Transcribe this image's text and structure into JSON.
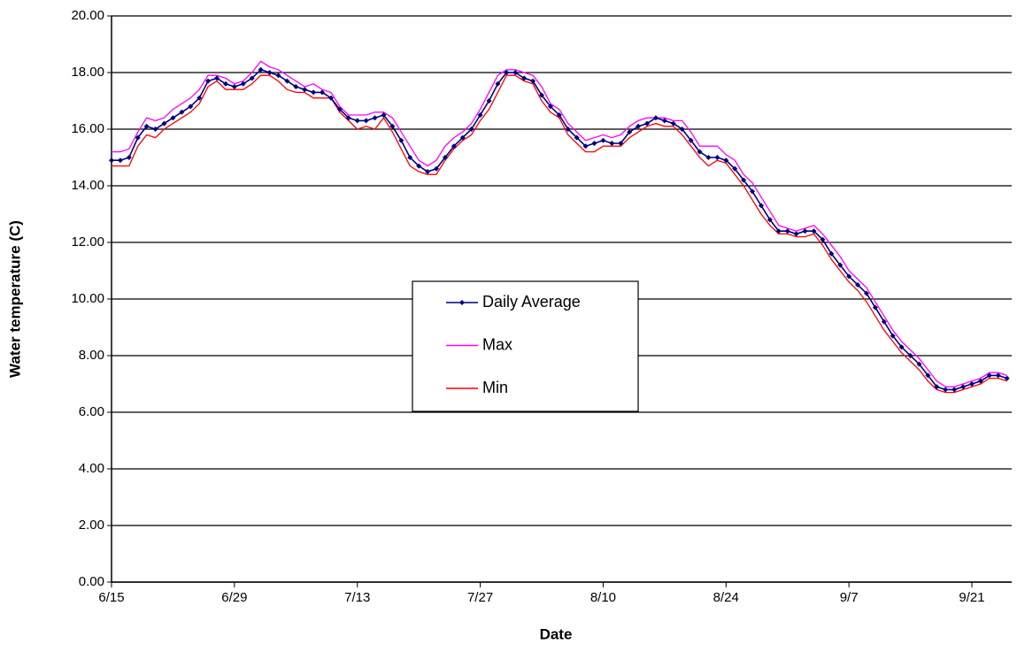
{
  "chart_data": {
    "type": "line",
    "x_label": "Date",
    "y_label": "Water temperature (C)",
    "categories": [
      "6/15",
      null,
      null,
      null,
      null,
      null,
      null,
      null,
      null,
      null,
      null,
      null,
      null,
      null,
      "6/29",
      null,
      null,
      null,
      null,
      null,
      null,
      null,
      null,
      null,
      null,
      null,
      null,
      null,
      "7/13",
      null,
      null,
      null,
      null,
      null,
      null,
      null,
      null,
      null,
      null,
      null,
      null,
      null,
      "7/27",
      null,
      null,
      null,
      null,
      null,
      null,
      null,
      null,
      null,
      null,
      null,
      null,
      null,
      "8/10",
      null,
      null,
      null,
      null,
      null,
      null,
      null,
      null,
      null,
      null,
      null,
      null,
      null,
      "8/24",
      null,
      null,
      null,
      null,
      null,
      null,
      null,
      null,
      null,
      null,
      null,
      null,
      null,
      "9/7",
      null,
      null,
      null,
      null,
      null,
      null,
      null,
      null,
      null,
      null,
      null,
      null,
      null,
      "9/21",
      null,
      null,
      null,
      null
    ],
    "series": [
      {
        "name": "Daily Average",
        "color": "#000080",
        "markers": true,
        "values": [
          14.9,
          14.9,
          15.0,
          15.7,
          16.1,
          16.0,
          16.2,
          16.4,
          16.6,
          16.8,
          17.1,
          17.7,
          17.8,
          17.6,
          17.5,
          17.6,
          17.8,
          18.1,
          18.0,
          17.9,
          17.7,
          17.5,
          17.4,
          17.3,
          17.3,
          17.1,
          16.7,
          16.4,
          16.3,
          16.3,
          16.4,
          16.5,
          16.1,
          15.6,
          15.0,
          14.7,
          14.5,
          14.6,
          15.0,
          15.4,
          15.7,
          16.0,
          16.5,
          17.0,
          17.6,
          18.0,
          18.0,
          17.8,
          17.7,
          17.2,
          16.8,
          16.5,
          16.0,
          15.7,
          15.4,
          15.5,
          15.6,
          15.5,
          15.5,
          15.9,
          16.1,
          16.2,
          16.4,
          16.3,
          16.2,
          16.0,
          15.6,
          15.2,
          15.0,
          15.0,
          14.9,
          14.6,
          14.2,
          13.8,
          13.3,
          12.8,
          12.4,
          12.4,
          12.3,
          12.4,
          12.4,
          12.1,
          11.6,
          11.2,
          10.8,
          10.5,
          10.2,
          9.7,
          9.2,
          8.7,
          8.3,
          8.0,
          7.7,
          7.3,
          6.9,
          6.8,
          6.8,
          6.9,
          7.0,
          7.1,
          7.3,
          7.3,
          7.2
        ]
      },
      {
        "name": "Max",
        "color": "#ff00ff",
        "markers": false,
        "values": [
          15.2,
          15.2,
          15.3,
          15.9,
          16.4,
          16.3,
          16.4,
          16.7,
          16.9,
          17.1,
          17.4,
          17.9,
          17.9,
          17.8,
          17.6,
          17.7,
          18.0,
          18.4,
          18.2,
          18.1,
          17.9,
          17.7,
          17.5,
          17.6,
          17.4,
          17.3,
          16.8,
          16.5,
          16.5,
          16.5,
          16.6,
          16.6,
          16.4,
          15.9,
          15.4,
          14.9,
          14.7,
          14.9,
          15.4,
          15.7,
          15.9,
          16.2,
          16.7,
          17.3,
          17.9,
          18.1,
          18.1,
          18.0,
          17.9,
          17.5,
          16.9,
          16.7,
          16.2,
          15.9,
          15.6,
          15.7,
          15.8,
          15.7,
          15.8,
          16.1,
          16.3,
          16.4,
          16.4,
          16.4,
          16.3,
          16.3,
          15.9,
          15.4,
          15.4,
          15.4,
          15.1,
          14.9,
          14.4,
          14.1,
          13.6,
          13.1,
          12.6,
          12.5,
          12.4,
          12.5,
          12.6,
          12.3,
          11.9,
          11.5,
          11.0,
          10.7,
          10.4,
          9.9,
          9.4,
          8.9,
          8.5,
          8.2,
          7.9,
          7.5,
          7.1,
          6.9,
          6.9,
          7.0,
          7.1,
          7.2,
          7.4,
          7.4,
          7.3
        ]
      },
      {
        "name": "Min",
        "color": "#ff0000",
        "markers": false,
        "values": [
          14.7,
          14.7,
          14.7,
          15.4,
          15.8,
          15.7,
          16.0,
          16.2,
          16.4,
          16.6,
          16.9,
          17.5,
          17.7,
          17.4,
          17.4,
          17.4,
          17.6,
          17.9,
          17.9,
          17.7,
          17.4,
          17.3,
          17.3,
          17.1,
          17.1,
          17.1,
          16.6,
          16.3,
          16.0,
          16.1,
          16.0,
          16.4,
          15.9,
          15.3,
          14.7,
          14.5,
          14.4,
          14.4,
          14.9,
          15.3,
          15.6,
          15.8,
          16.3,
          16.7,
          17.3,
          17.9,
          17.9,
          17.7,
          17.6,
          17.0,
          16.6,
          16.4,
          15.8,
          15.5,
          15.2,
          15.2,
          15.4,
          15.4,
          15.4,
          15.7,
          15.9,
          16.1,
          16.2,
          16.1,
          16.1,
          15.8,
          15.4,
          15.0,
          14.7,
          14.9,
          14.8,
          14.4,
          14.0,
          13.5,
          13.0,
          12.6,
          12.3,
          12.3,
          12.2,
          12.2,
          12.3,
          11.9,
          11.4,
          11.0,
          10.6,
          10.3,
          9.9,
          9.4,
          8.9,
          8.5,
          8.1,
          7.8,
          7.5,
          7.1,
          6.8,
          6.7,
          6.7,
          6.8,
          6.9,
          7.0,
          7.2,
          7.2,
          7.1
        ]
      }
    ],
    "ylim": [
      0,
      20
    ],
    "yticks": [
      {
        "value": 0,
        "label": "0.00"
      },
      {
        "value": 2,
        "label": "2.00"
      },
      {
        "value": 4,
        "label": "4.00"
      },
      {
        "value": 6,
        "label": "6.00"
      },
      {
        "value": 8,
        "label": "8.00"
      },
      {
        "value": 10,
        "label": "10.00"
      },
      {
        "value": 12,
        "label": "12.00"
      },
      {
        "value": 14,
        "label": "14.00"
      },
      {
        "value": 16,
        "label": "16.00"
      },
      {
        "value": 18,
        "label": "18.00"
      },
      {
        "value": 20,
        "label": "20.00"
      }
    ],
    "grid": true,
    "legend": "center"
  }
}
